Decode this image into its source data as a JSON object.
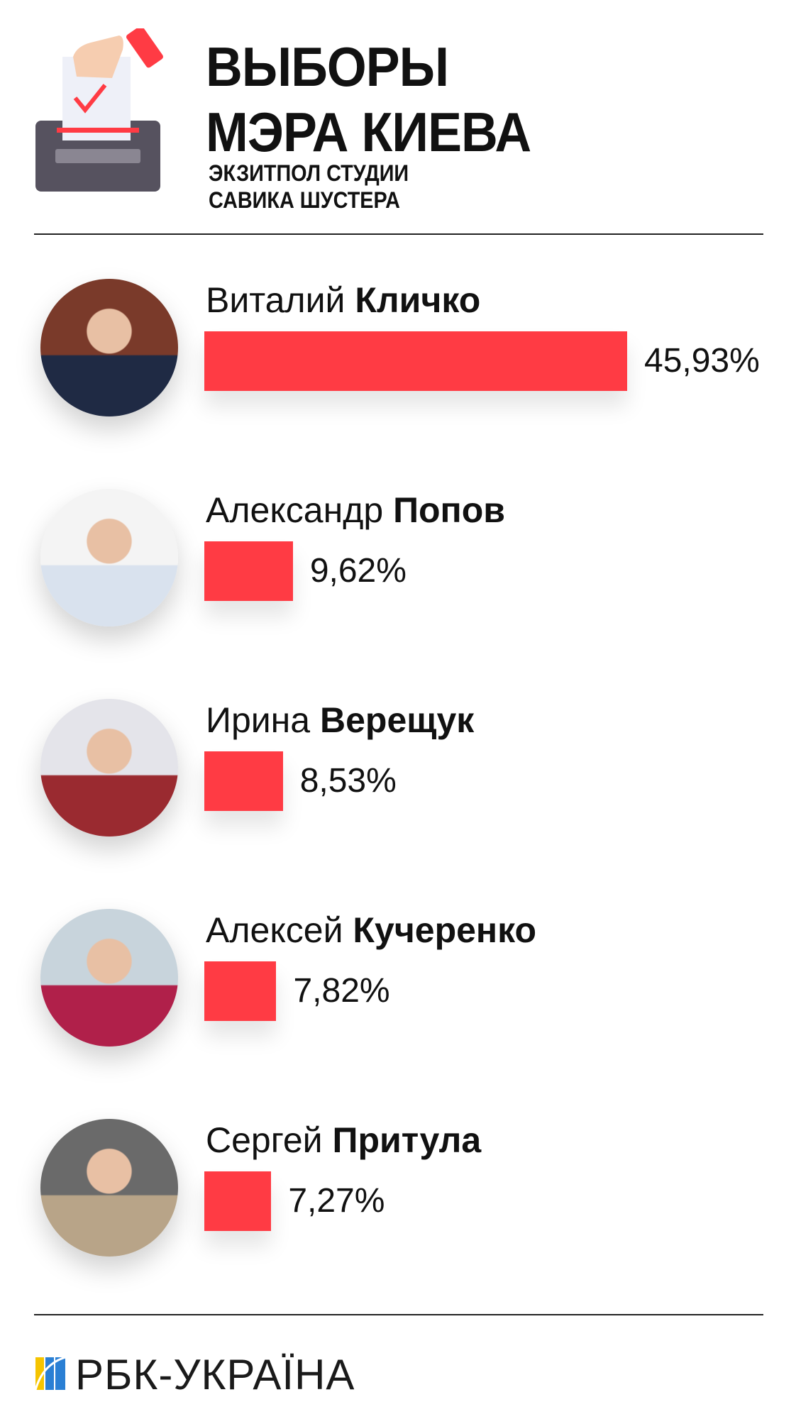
{
  "header": {
    "title_line1": "ВЫБОРЫ",
    "title_line2": "МЭРА КИЕВА",
    "subtitle_line1": "ЭКЗИТПОЛ СТУДИИ",
    "subtitle_line2": "САВИКА ШУСТЕРА",
    "icon": "ballot-box-icon"
  },
  "colors": {
    "bar": "#ff3b44",
    "text": "#111111",
    "rule": "#222222"
  },
  "chart_data": {
    "type": "bar",
    "orientation": "horizontal",
    "title": "ВЫБОРЫ МЭРА КИЕВА",
    "subtitle": "ЭКЗИТПОЛ СТУДИИ САВИКА ШУСТЕРА",
    "categories": [
      "Виталий Кличко",
      "Александр Попов",
      "Ирина Верещук",
      "Алексей Кучеренко",
      "Сергей Притула"
    ],
    "values": [
      45.93,
      9.62,
      8.53,
      7.82,
      7.27
    ],
    "unit": "%",
    "grid": false
  },
  "candidates": [
    {
      "first": "Виталий",
      "last": "Кличко",
      "value": 45.93,
      "label": "45,93%",
      "photo": [
        "#7a3a2a",
        "#1f2a44"
      ]
    },
    {
      "first": "Александр",
      "last": "Попов",
      "value": 9.62,
      "label": "9,62%",
      "photo": [
        "#f4f4f4",
        "#d9e2ee"
      ]
    },
    {
      "first": "Ирина",
      "last": "Верещук",
      "value": 8.53,
      "label": "8,53%",
      "photo": [
        "#e4e4ea",
        "#9a2a30"
      ]
    },
    {
      "first": "Алексей",
      "last": "Кучеренко",
      "value": 7.82,
      "label": "7,82%",
      "photo": [
        "#c8d4dc",
        "#b0204a"
      ]
    },
    {
      "first": "Сергей",
      "last": "Притула",
      "value": 7.27,
      "label": "7,27%",
      "photo": [
        "#6a6a6a",
        "#b8a488"
      ]
    }
  ],
  "footer": {
    "logo_text": "РБК-УКРАЇНА",
    "logo_colors": [
      "#f5c400",
      "#2a7fd4"
    ]
  }
}
